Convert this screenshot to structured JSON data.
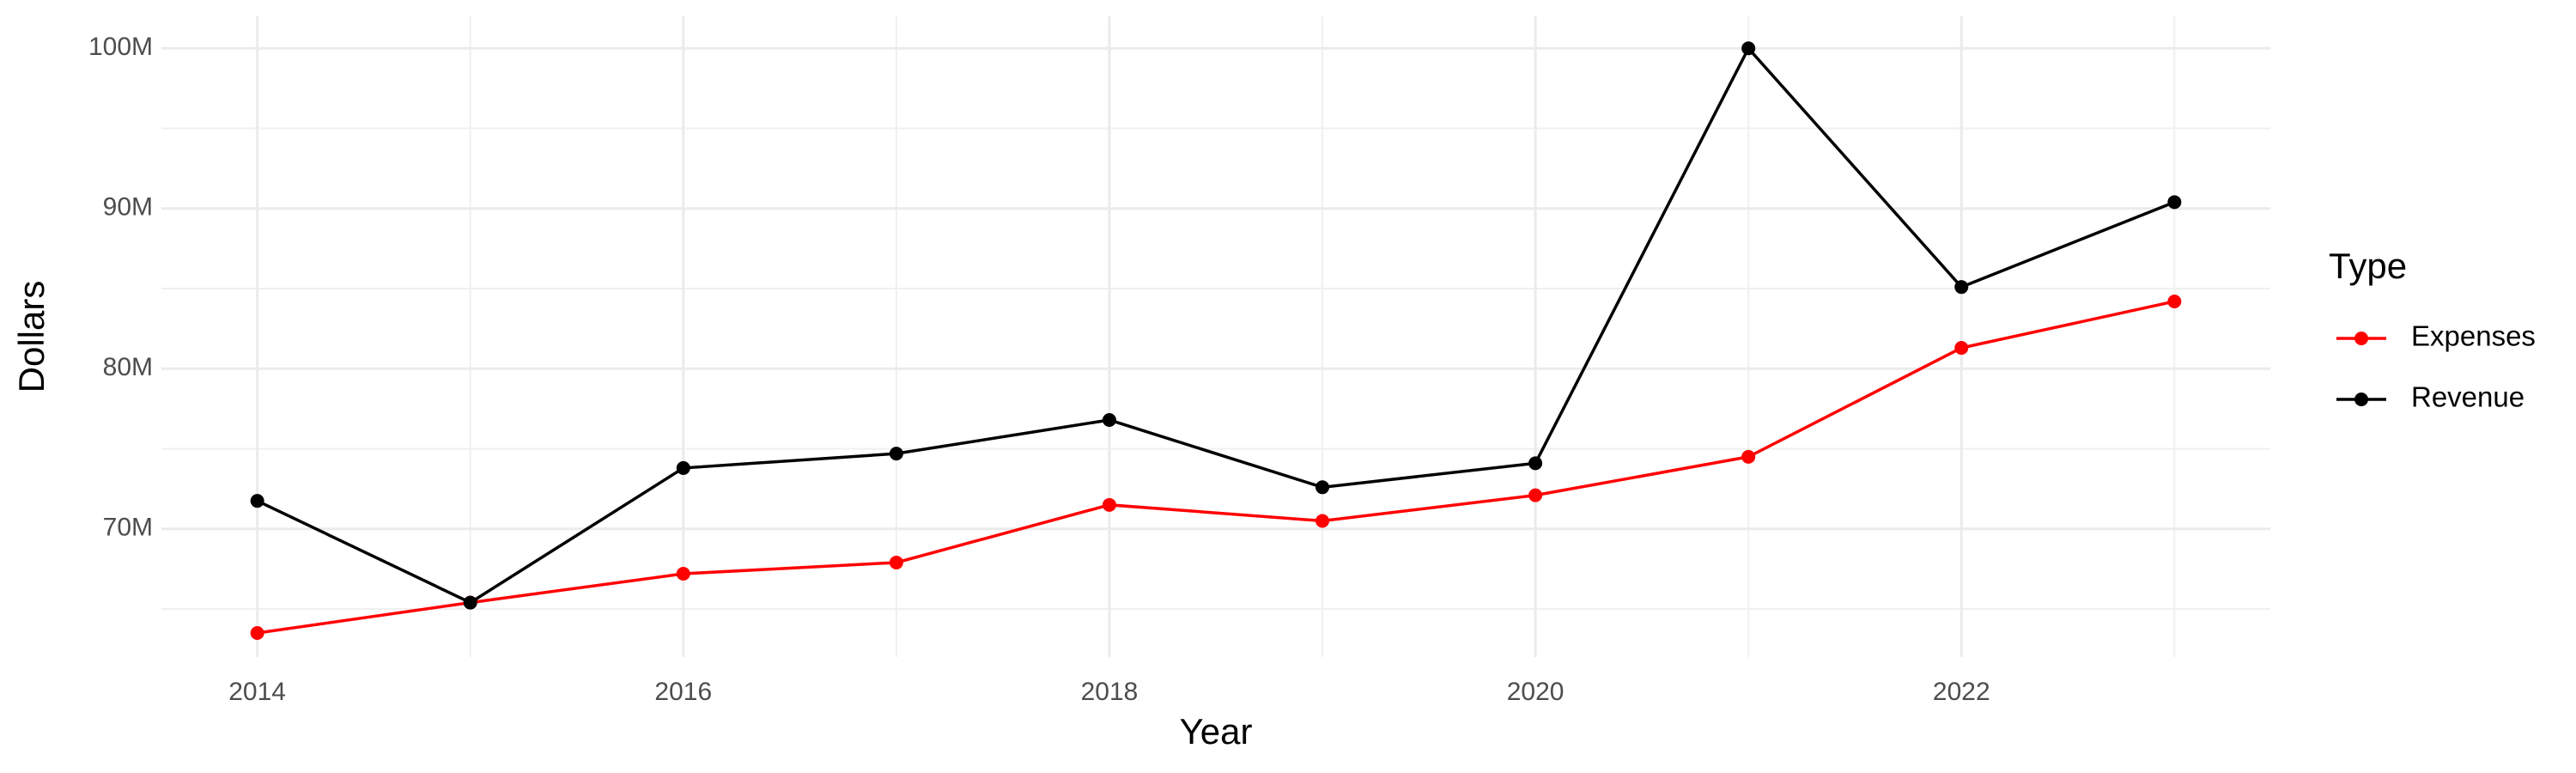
{
  "chart_data": {
    "type": "line",
    "x_label": "Year",
    "y_label": "Dollars",
    "legend_title": "Type",
    "x": [
      2014,
      2015,
      2016,
      2017,
      2018,
      2019,
      2020,
      2021,
      2022,
      2023
    ],
    "series": [
      {
        "name": "Expenses",
        "color": "#ff0000",
        "values": [
          63500000,
          65400000,
          67200000,
          67900000,
          71500000,
          70500000,
          72100000,
          74500000,
          81300000,
          84200000
        ]
      },
      {
        "name": "Revenue",
        "color": "#000000",
        "values": [
          71750000,
          65400000,
          73800000,
          74700000,
          76800000,
          72600000,
          74100000,
          100000000,
          85100000,
          90400000
        ]
      }
    ],
    "xlim": [
      2013.55,
      2023.45
    ],
    "xticks": [
      2014,
      2016,
      2018,
      2020,
      2022
    ],
    "ylim": [
      62000000,
      102000000
    ],
    "yticks": [
      {
        "value": 70000000,
        "label": "70M"
      },
      {
        "value": 80000000,
        "label": "80M"
      },
      {
        "value": 90000000,
        "label": "90M"
      },
      {
        "value": 100000000,
        "label": "100M"
      }
    ],
    "grid": true,
    "legend": "right"
  }
}
